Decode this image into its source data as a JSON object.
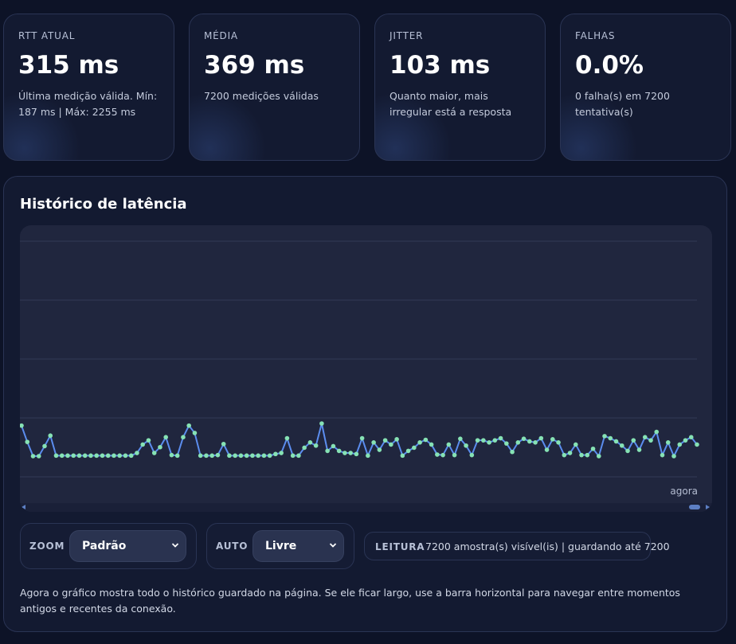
{
  "stats": [
    {
      "label": "RTT ATUAL",
      "value": "315 ms",
      "note": "Última medição válida. Mín: 187 ms | Máx: 2255 ms"
    },
    {
      "label": "MÉDIA",
      "value": "369 ms",
      "note": "7200 medições válidas"
    },
    {
      "label": "JITTER",
      "value": "103 ms",
      "note": "Quanto maior, mais irregular está a resposta"
    },
    {
      "label": "FALHAS",
      "value": "0.0%",
      "note": "0 falha(s) em 7200 tentativa(s)"
    }
  ],
  "history": {
    "title": "Histórico de latência",
    "now_label": "agora"
  },
  "controls": {
    "zoom_label": "ZOOM",
    "zoom_value": "Padrão",
    "auto_label": "AUTO",
    "auto_value": "Livre",
    "readout_label": "LEITURA",
    "readout_text": "7200 amostra(s) visível(is) | guardando até 7200"
  },
  "help_text": "Agora o gráfico mostra todo o histórico guardado na página. Se ele ficar largo, use a barra horizontal para navegar entre momentos antigos e recentes da conexão.",
  "colors": {
    "line": "#5b8def",
    "point": "#86e2b4",
    "grid": "#323a55"
  },
  "chart_data": {
    "type": "line",
    "series": [
      {
        "values": [
          480,
          325,
          190,
          190,
          285,
          385,
          195,
          195,
          195,
          195,
          195,
          195,
          195,
          195,
          195,
          195,
          195,
          195,
          195,
          195,
          220,
          300,
          340,
          220,
          275,
          370,
          200,
          195,
          370,
          480,
          410,
          195,
          195,
          195,
          200,
          305,
          195,
          195,
          195,
          195,
          195,
          195,
          195,
          195,
          210,
          220,
          360,
          195,
          195,
          270,
          320,
          290,
          500,
          240,
          285,
          240,
          220,
          220,
          210,
          360,
          195,
          320,
          250,
          340,
          300,
          350,
          195,
          240,
          270,
          320,
          345,
          300,
          205,
          200,
          300,
          200,
          355,
          290,
          200,
          340,
          340,
          320,
          340,
          360,
          310,
          230,
          320,
          355,
          330,
          320,
          360,
          250,
          350,
          320,
          200,
          220,
          300,
          200,
          200,
          260,
          190,
          380,
          360,
          330,
          290,
          240,
          340,
          250,
          370,
          340,
          420,
          200,
          320,
          190,
          300,
          340,
          370,
          300
        ]
      }
    ]
  }
}
